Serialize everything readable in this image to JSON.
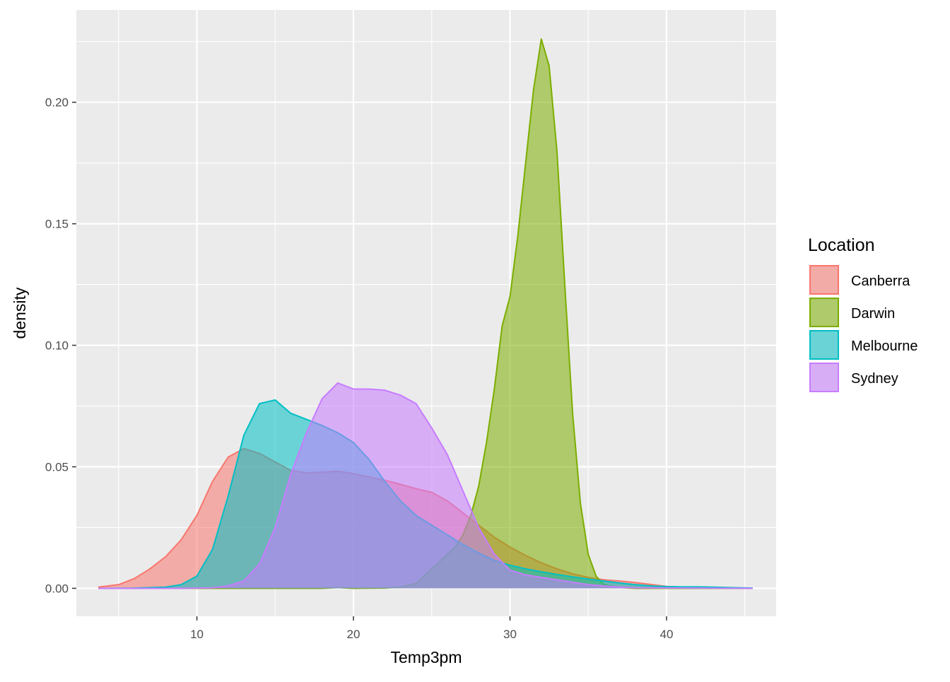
{
  "chart_data": {
    "type": "area",
    "subtype": "density",
    "xlabel": "Temp3pm",
    "ylabel": "density",
    "xlim": [
      2.3,
      47.0
    ],
    "ylim": [
      -0.0115,
      0.238
    ],
    "x_ticks": [
      10,
      20,
      30,
      40
    ],
    "x_tick_labels": [
      "10",
      "20",
      "30",
      "40"
    ],
    "y_ticks": [
      0.0,
      0.05,
      0.1,
      0.15,
      0.2
    ],
    "y_tick_labels": [
      "0.00",
      "0.05",
      "0.10",
      "0.15",
      "0.20"
    ],
    "grid": true,
    "legend": {
      "title": "Location",
      "position": "right"
    },
    "series": [
      {
        "name": "Canberra",
        "color": "#F8766D",
        "points": [
          [
            3.7,
            0.0005
          ],
          [
            5,
            0.0015
          ],
          [
            6,
            0.004
          ],
          [
            7,
            0.008
          ],
          [
            8,
            0.013
          ],
          [
            9,
            0.02
          ],
          [
            10,
            0.03
          ],
          [
            11,
            0.044
          ],
          [
            12,
            0.054
          ],
          [
            13,
            0.0575
          ],
          [
            14,
            0.0555
          ],
          [
            15,
            0.052
          ],
          [
            16,
            0.0485
          ],
          [
            17,
            0.0475
          ],
          [
            18,
            0.0478
          ],
          [
            19,
            0.0482
          ],
          [
            20,
            0.0472
          ],
          [
            21,
            0.0458
          ],
          [
            22,
            0.0445
          ],
          [
            23,
            0.0428
          ],
          [
            24,
            0.041
          ],
          [
            25,
            0.0395
          ],
          [
            26,
            0.036
          ],
          [
            27,
            0.031
          ],
          [
            28,
            0.026
          ],
          [
            29,
            0.021
          ],
          [
            30,
            0.017
          ],
          [
            31,
            0.0135
          ],
          [
            32,
            0.0105
          ],
          [
            33,
            0.008
          ],
          [
            34,
            0.006
          ],
          [
            35,
            0.0045
          ],
          [
            36,
            0.0035
          ],
          [
            37,
            0.003
          ],
          [
            38,
            0.0024
          ],
          [
            39,
            0.0016
          ],
          [
            40,
            0.0008
          ],
          [
            41,
            0.0004
          ],
          [
            42,
            0.0002
          ],
          [
            45.5,
            0.0
          ]
        ]
      },
      {
        "name": "Darwin",
        "color": "#7CAE00",
        "points": [
          [
            3.7,
            0.0
          ],
          [
            18,
            0.0
          ],
          [
            19,
            0.0003
          ],
          [
            20,
            0.0
          ],
          [
            22,
            0.0001
          ],
          [
            23,
            0.0005
          ],
          [
            24,
            0.002
          ],
          [
            25,
            0.008
          ],
          [
            26,
            0.014
          ],
          [
            26.5,
            0.017
          ],
          [
            27,
            0.022
          ],
          [
            27.5,
            0.03
          ],
          [
            28,
            0.042
          ],
          [
            28.5,
            0.06
          ],
          [
            29,
            0.082
          ],
          [
            29.5,
            0.108
          ],
          [
            30,
            0.12
          ],
          [
            30.5,
            0.145
          ],
          [
            31,
            0.175
          ],
          [
            31.5,
            0.205
          ],
          [
            32,
            0.226
          ],
          [
            32.5,
            0.215
          ],
          [
            33,
            0.18
          ],
          [
            33.5,
            0.125
          ],
          [
            34,
            0.072
          ],
          [
            34.5,
            0.035
          ],
          [
            35,
            0.014
          ],
          [
            35.5,
            0.005
          ],
          [
            36,
            0.0015
          ],
          [
            37,
            0.0003
          ],
          [
            38,
            0.0
          ],
          [
            45.5,
            0.0
          ]
        ]
      },
      {
        "name": "Melbourne",
        "color": "#00BFC4",
        "points": [
          [
            3.7,
            0.0
          ],
          [
            6,
            0.0001
          ],
          [
            8,
            0.0005
          ],
          [
            9,
            0.0015
          ],
          [
            10,
            0.005
          ],
          [
            11,
            0.016
          ],
          [
            12,
            0.038
          ],
          [
            13,
            0.063
          ],
          [
            14,
            0.076
          ],
          [
            15,
            0.0775
          ],
          [
            16,
            0.072
          ],
          [
            17,
            0.0695
          ],
          [
            18,
            0.067
          ],
          [
            19,
            0.064
          ],
          [
            20,
            0.06
          ],
          [
            21,
            0.053
          ],
          [
            22,
            0.044
          ],
          [
            23,
            0.036
          ],
          [
            24,
            0.03
          ],
          [
            25,
            0.026
          ],
          [
            26,
            0.022
          ],
          [
            27,
            0.018
          ],
          [
            28,
            0.0145
          ],
          [
            29,
            0.0115
          ],
          [
            30,
            0.0095
          ],
          [
            31,
            0.008
          ],
          [
            32,
            0.0068
          ],
          [
            33,
            0.0057
          ],
          [
            34,
            0.0047
          ],
          [
            35,
            0.0038
          ],
          [
            36,
            0.003
          ],
          [
            37,
            0.0022
          ],
          [
            38,
            0.0015
          ],
          [
            39,
            0.001
          ],
          [
            40,
            0.0007
          ],
          [
            41,
            0.0006
          ],
          [
            42,
            0.0006
          ],
          [
            43,
            0.0005
          ],
          [
            44,
            0.0003
          ],
          [
            45.5,
            0.0001
          ]
        ]
      },
      {
        "name": "Sydney",
        "color": "#C77CFF",
        "points": [
          [
            3.7,
            0.0
          ],
          [
            9,
            0.0
          ],
          [
            11,
            0.0002
          ],
          [
            12,
            0.001
          ],
          [
            13,
            0.003
          ],
          [
            14,
            0.01
          ],
          [
            15,
            0.025
          ],
          [
            16,
            0.047
          ],
          [
            17,
            0.064
          ],
          [
            18,
            0.078
          ],
          [
            19,
            0.0845
          ],
          [
            20,
            0.082
          ],
          [
            21,
            0.082
          ],
          [
            22,
            0.0815
          ],
          [
            23,
            0.0795
          ],
          [
            24,
            0.076
          ],
          [
            25,
            0.066
          ],
          [
            26,
            0.055
          ],
          [
            27,
            0.04
          ],
          [
            28,
            0.025
          ],
          [
            29,
            0.014
          ],
          [
            30,
            0.0075
          ],
          [
            31,
            0.0055
          ],
          [
            32,
            0.0045
          ],
          [
            33,
            0.0035
          ],
          [
            34,
            0.0025
          ],
          [
            35,
            0.0015
          ],
          [
            36,
            0.001
          ],
          [
            37,
            0.0005
          ],
          [
            38,
            0.0002
          ],
          [
            45.5,
            0.0
          ]
        ]
      }
    ]
  }
}
